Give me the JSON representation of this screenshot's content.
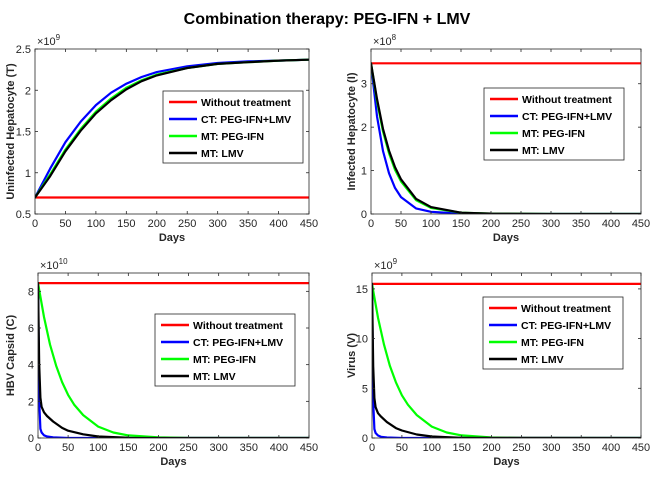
{
  "title": "Combination therapy: PEG-IFN + LMV",
  "series_labels": [
    "Without treatment",
    "CT: PEG-IFN+LMV",
    "MT: PEG-IFN",
    "MT: LMV"
  ],
  "colors": {
    "without_treatment": "#ff0000",
    "ct_peg_ifn_lmv": "#0000ff",
    "mt_peg_ifn": "#00ff00",
    "mt_lmv": "#000000"
  },
  "chart_data": [
    {
      "type": "line",
      "ylabel": "Uninfected Hepatocyte (T)",
      "xlabel": "Days",
      "xlim": [
        0,
        450
      ],
      "xticks": [
        "0",
        "50",
        "100",
        "150",
        "200",
        "250",
        "300",
        "350",
        "400",
        "450"
      ],
      "ylim": [
        0.5,
        2.5
      ],
      "yticks": [
        "0.5",
        "1",
        "1.5",
        "2",
        "2.5"
      ],
      "ytick_values": [
        0.5,
        1,
        1.5,
        2,
        2.5
      ],
      "exponent_base": "×10",
      "exponent_power": "9",
      "legend_position": "center-right",
      "series": [
        {
          "name": "Without treatment",
          "x": [
            0,
            450
          ],
          "y": [
            0.7,
            0.7
          ]
        },
        {
          "name": "CT: PEG-IFN+LMV",
          "x": [
            0,
            25,
            50,
            75,
            100,
            125,
            150,
            175,
            200,
            250,
            300,
            350,
            400,
            450
          ],
          "y": [
            0.7,
            1.05,
            1.37,
            1.62,
            1.82,
            1.97,
            2.08,
            2.16,
            2.22,
            2.29,
            2.33,
            2.35,
            2.36,
            2.37
          ]
        },
        {
          "name": "MT: PEG-IFN",
          "x": [
            0,
            25,
            50,
            75,
            100,
            125,
            150,
            175,
            200,
            250,
            300,
            350,
            400,
            450
          ],
          "y": [
            0.7,
            0.98,
            1.28,
            1.53,
            1.74,
            1.9,
            2.03,
            2.12,
            2.19,
            2.27,
            2.32,
            2.34,
            2.36,
            2.37
          ]
        },
        {
          "name": "MT: LMV",
          "x": [
            0,
            25,
            50,
            75,
            100,
            125,
            150,
            175,
            200,
            250,
            300,
            350,
            400,
            450
          ],
          "y": [
            0.7,
            0.96,
            1.26,
            1.51,
            1.72,
            1.88,
            2.01,
            2.11,
            2.18,
            2.27,
            2.32,
            2.34,
            2.36,
            2.37
          ]
        }
      ]
    },
    {
      "type": "line",
      "ylabel": "Infected Hepatocyte (I)",
      "xlabel": "Days",
      "xlim": [
        0,
        450
      ],
      "xticks": [
        "0",
        "50",
        "100",
        "150",
        "200",
        "250",
        "300",
        "350",
        "400",
        "450"
      ],
      "ylim": [
        0,
        3.8
      ],
      "yticks": [
        "0",
        "1",
        "2",
        "3"
      ],
      "ytick_values": [
        0,
        1,
        2,
        3
      ],
      "exponent_base": "×10",
      "exponent_power": "8",
      "legend_position": "top-right",
      "series": [
        {
          "name": "Without treatment",
          "x": [
            0,
            450
          ],
          "y": [
            3.47,
            3.47
          ]
        },
        {
          "name": "CT: PEG-IFN+LMV",
          "x": [
            0,
            10,
            20,
            30,
            40,
            50,
            75,
            100,
            150,
            200,
            300,
            450
          ],
          "y": [
            3.47,
            2.25,
            1.45,
            0.94,
            0.6,
            0.39,
            0.13,
            0.05,
            0.01,
            0.0,
            0.0,
            0.0
          ]
        },
        {
          "name": "MT: PEG-IFN",
          "x": [
            0,
            10,
            20,
            30,
            40,
            50,
            75,
            100,
            150,
            200,
            300,
            450
          ],
          "y": [
            3.47,
            2.6,
            1.9,
            1.4,
            1.02,
            0.75,
            0.32,
            0.14,
            0.03,
            0.01,
            0.0,
            0.0
          ]
        },
        {
          "name": "MT: LMV",
          "x": [
            0,
            10,
            20,
            30,
            40,
            50,
            75,
            100,
            150,
            200,
            300,
            450
          ],
          "y": [
            3.47,
            2.65,
            1.96,
            1.46,
            1.08,
            0.8,
            0.35,
            0.16,
            0.03,
            0.01,
            0.0,
            0.0
          ]
        }
      ]
    },
    {
      "type": "line",
      "ylabel": "HBV Capsid (C)",
      "xlabel": "Days",
      "xlim": [
        0,
        450
      ],
      "xticks": [
        "0",
        "50",
        "100",
        "150",
        "200",
        "250",
        "300",
        "350",
        "400",
        "450"
      ],
      "ylim": [
        0,
        9
      ],
      "yticks": [
        "0",
        "2",
        "4",
        "6",
        "8"
      ],
      "ytick_values": [
        0,
        2,
        4,
        6,
        8
      ],
      "exponent_base": "×10",
      "exponent_power": "10",
      "legend_position": "center-right",
      "series": [
        {
          "name": "Without treatment",
          "x": [
            0,
            450
          ],
          "y": [
            8.45,
            8.45
          ]
        },
        {
          "name": "CT: PEG-IFN+LMV",
          "x": [
            0,
            2,
            4,
            6,
            10,
            15,
            25,
            50,
            100,
            450
          ],
          "y": [
            8.45,
            2.0,
            0.5,
            0.3,
            0.15,
            0.08,
            0.03,
            0.0,
            0.0,
            0.0
          ]
        },
        {
          "name": "MT: PEG-IFN",
          "x": [
            0,
            10,
            20,
            30,
            40,
            50,
            60,
            75,
            100,
            125,
            150,
            200,
            250,
            450
          ],
          "y": [
            8.45,
            6.6,
            5.1,
            3.95,
            3.05,
            2.35,
            1.82,
            1.25,
            0.62,
            0.3,
            0.14,
            0.03,
            0.0,
            0.0
          ]
        },
        {
          "name": "MT: LMV",
          "x": [
            0,
            2,
            4,
            6,
            10,
            15,
            25,
            40,
            50,
            75,
            100,
            150,
            450
          ],
          "y": [
            8.45,
            4.0,
            2.2,
            1.7,
            1.4,
            1.2,
            0.9,
            0.55,
            0.4,
            0.2,
            0.08,
            0.01,
            0.0
          ]
        }
      ]
    },
    {
      "type": "line",
      "ylabel": "Virus (V)",
      "xlabel": "Days",
      "xlim": [
        0,
        450
      ],
      "xticks": [
        "0",
        "50",
        "100",
        "150",
        "200",
        "250",
        "300",
        "350",
        "400",
        "450"
      ],
      "ylim": [
        0,
        16.6
      ],
      "yticks": [
        "0",
        "5",
        "10",
        "15"
      ],
      "ytick_values": [
        0,
        5,
        10,
        15
      ],
      "exponent_base": "×10",
      "exponent_power": "9",
      "legend_position": "center-right",
      "series": [
        {
          "name": "Without treatment",
          "x": [
            0,
            450
          ],
          "y": [
            15.5,
            15.5
          ]
        },
        {
          "name": "CT: PEG-IFN+LMV",
          "x": [
            0,
            2,
            4,
            6,
            10,
            15,
            25,
            50,
            100,
            450
          ],
          "y": [
            15.5,
            3.6,
            0.9,
            0.5,
            0.25,
            0.12,
            0.05,
            0.0,
            0.0,
            0.0
          ]
        },
        {
          "name": "MT: PEG-IFN",
          "x": [
            0,
            10,
            20,
            30,
            40,
            50,
            60,
            75,
            100,
            125,
            150,
            200,
            250,
            450
          ],
          "y": [
            15.5,
            12.1,
            9.4,
            7.25,
            5.6,
            4.3,
            3.35,
            2.3,
            1.15,
            0.55,
            0.26,
            0.05,
            0.0,
            0.0
          ]
        },
        {
          "name": "MT: LMV",
          "x": [
            0,
            2,
            4,
            6,
            10,
            15,
            25,
            40,
            50,
            75,
            100,
            150,
            450
          ],
          "y": [
            15.5,
            7.2,
            4.0,
            3.1,
            2.5,
            2.15,
            1.6,
            1.0,
            0.75,
            0.35,
            0.15,
            0.02,
            0.0
          ]
        }
      ]
    }
  ]
}
